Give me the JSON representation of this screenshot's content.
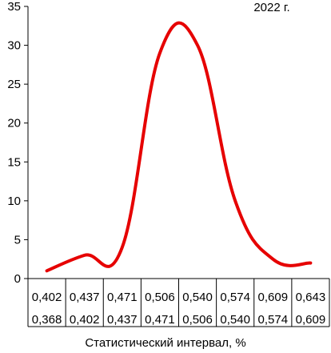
{
  "chart_data": {
    "type": "line",
    "annotation": "2022 г.",
    "xlabel": "Статистический интервал, %",
    "ylim": [
      0,
      35
    ],
    "yticks": [
      "0",
      "5",
      "10",
      "15",
      "20",
      "25",
      "30",
      "35"
    ],
    "categories": [
      {
        "upper": "0,402",
        "lower": "0,368"
      },
      {
        "upper": "0,437",
        "lower": "0,402"
      },
      {
        "upper": "0,471",
        "lower": "0,437"
      },
      {
        "upper": "0,506",
        "lower": "0,471"
      },
      {
        "upper": "0,540",
        "lower": "0,506"
      },
      {
        "upper": "0,574",
        "lower": "0,540"
      },
      {
        "upper": "0,609",
        "lower": "0,574"
      },
      {
        "upper": "0,643",
        "lower": "0,609"
      }
    ],
    "series": [
      {
        "color": "#e60000",
        "values": [
          1,
          3,
          4,
          29,
          30,
          10,
          2.5,
          2
        ]
      }
    ],
    "grid": false
  }
}
